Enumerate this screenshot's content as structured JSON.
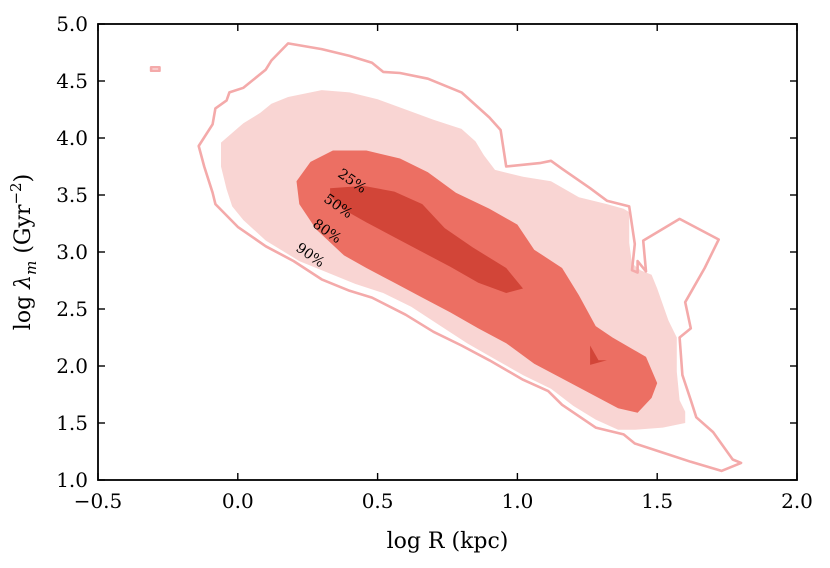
{
  "chart_data": {
    "type": "contour",
    "xlabel": "log R (kpc)",
    "ylabel_parts": {
      "pre": "log ",
      "lambda": "λ",
      "sub": "m",
      "mid": " (Gyr",
      "sup": "−2",
      "post": ")"
    },
    "xlim": [
      -0.5,
      2.0
    ],
    "ylim": [
      1.0,
      5.0
    ],
    "xticks": [
      {
        "value": -0.5,
        "label": "−0.5"
      },
      {
        "value": 0.0,
        "label": "0.0"
      },
      {
        "value": 0.5,
        "label": "0.5"
      },
      {
        "value": 1.0,
        "label": "1.0"
      },
      {
        "value": 1.5,
        "label": "1.5"
      },
      {
        "value": 2.0,
        "label": "2.0"
      }
    ],
    "yticks": [
      {
        "value": 1.0,
        "label": "1.0"
      },
      {
        "value": 1.5,
        "label": "1.5"
      },
      {
        "value": 2.0,
        "label": "2.0"
      },
      {
        "value": 2.5,
        "label": "2.5"
      },
      {
        "value": 3.0,
        "label": "3.0"
      },
      {
        "value": 3.5,
        "label": "3.5"
      },
      {
        "value": 4.0,
        "label": "4.0"
      },
      {
        "value": 4.5,
        "label": "4.5"
      },
      {
        "value": 5.0,
        "label": "5.0"
      }
    ],
    "grid": false,
    "levels": [
      {
        "name": "90%",
        "label": "90%",
        "style": "line",
        "color": "#f4aaaa",
        "label_pos": [
          0.25,
          2.94
        ],
        "polygons": [
          [
            [
              0.18,
              4.83
            ],
            [
              0.3,
              4.78
            ],
            [
              0.4,
              4.72
            ],
            [
              0.48,
              4.66
            ],
            [
              0.52,
              4.58
            ],
            [
              0.58,
              4.57
            ],
            [
              0.68,
              4.52
            ],
            [
              0.8,
              4.4
            ],
            [
              0.9,
              4.18
            ],
            [
              0.94,
              4.07
            ],
            [
              0.96,
              3.75
            ],
            [
              1.08,
              3.78
            ],
            [
              1.12,
              3.8
            ],
            [
              1.16,
              3.73
            ],
            [
              1.26,
              3.56
            ],
            [
              1.32,
              3.45
            ],
            [
              1.4,
              3.4
            ],
            [
              1.42,
              3.07
            ],
            [
              1.41,
              2.84
            ],
            [
              1.43,
              2.82
            ],
            [
              1.43,
              2.92
            ],
            [
              1.46,
              2.83
            ],
            [
              1.45,
              3.1
            ],
            [
              1.58,
              3.29
            ],
            [
              1.72,
              3.11
            ],
            [
              1.67,
              2.86
            ],
            [
              1.6,
              2.56
            ],
            [
              1.62,
              2.33
            ],
            [
              1.58,
              2.25
            ],
            [
              1.59,
              1.92
            ],
            [
              1.62,
              1.7
            ],
            [
              1.64,
              1.55
            ],
            [
              1.7,
              1.42
            ],
            [
              1.77,
              1.18
            ],
            [
              1.8,
              1.15
            ],
            [
              1.73,
              1.08
            ],
            [
              1.62,
              1.16
            ],
            [
              1.52,
              1.24
            ],
            [
              1.42,
              1.32
            ],
            [
              1.38,
              1.4
            ],
            [
              1.28,
              1.46
            ],
            [
              1.16,
              1.66
            ],
            [
              1.11,
              1.78
            ],
            [
              1.02,
              1.88
            ],
            [
              0.9,
              2.05
            ],
            [
              0.8,
              2.18
            ],
            [
              0.7,
              2.3
            ],
            [
              0.6,
              2.45
            ],
            [
              0.48,
              2.6
            ],
            [
              0.4,
              2.66
            ],
            [
              0.3,
              2.76
            ],
            [
              0.2,
              2.92
            ],
            [
              0.1,
              3.05
            ],
            [
              0.0,
              3.22
            ],
            [
              -0.08,
              3.42
            ],
            [
              -0.09,
              3.52
            ],
            [
              -0.12,
              3.75
            ],
            [
              -0.14,
              3.93
            ],
            [
              -0.09,
              4.12
            ],
            [
              -0.08,
              4.26
            ],
            [
              -0.04,
              4.33
            ],
            [
              -0.03,
              4.4
            ],
            [
              0.02,
              4.44
            ],
            [
              0.1,
              4.6
            ],
            [
              0.12,
              4.68
            ]
          ],
          [
            [
              -0.31,
              4.62
            ],
            [
              -0.28,
              4.62
            ],
            [
              -0.28,
              4.59
            ],
            [
              -0.31,
              4.59
            ]
          ]
        ]
      },
      {
        "name": "80%",
        "label": "80%",
        "style": "fill",
        "color": "#f9d5d3",
        "label_pos": [
          0.31,
          3.15
        ],
        "polygons": [
          [
            [
              0.3,
              4.42
            ],
            [
              0.4,
              4.4
            ],
            [
              0.5,
              4.34
            ],
            [
              0.6,
              4.25
            ],
            [
              0.7,
              4.16
            ],
            [
              0.8,
              4.08
            ],
            [
              0.85,
              3.97
            ],
            [
              0.88,
              3.85
            ],
            [
              0.92,
              3.72
            ],
            [
              1.02,
              3.66
            ],
            [
              1.12,
              3.62
            ],
            [
              1.22,
              3.48
            ],
            [
              1.32,
              3.42
            ],
            [
              1.38,
              3.38
            ],
            [
              1.4,
              3.35
            ],
            [
              1.4,
              3.08
            ],
            [
              1.41,
              2.9
            ],
            [
              1.44,
              2.84
            ],
            [
              1.48,
              2.8
            ],
            [
              1.5,
              2.68
            ],
            [
              1.54,
              2.4
            ],
            [
              1.57,
              2.25
            ],
            [
              1.57,
              1.95
            ],
            [
              1.58,
              1.7
            ],
            [
              1.6,
              1.6
            ],
            [
              1.6,
              1.5
            ],
            [
              1.52,
              1.46
            ],
            [
              1.42,
              1.44
            ],
            [
              1.36,
              1.44
            ],
            [
              1.28,
              1.53
            ],
            [
              1.2,
              1.65
            ],
            [
              1.12,
              1.8
            ],
            [
              1.02,
              1.92
            ],
            [
              0.92,
              2.06
            ],
            [
              0.82,
              2.2
            ],
            [
              0.72,
              2.36
            ],
            [
              0.62,
              2.52
            ],
            [
              0.52,
              2.64
            ],
            [
              0.42,
              2.72
            ],
            [
              0.32,
              2.82
            ],
            [
              0.22,
              2.92
            ],
            [
              0.1,
              3.1
            ],
            [
              0.02,
              3.28
            ],
            [
              -0.02,
              3.4
            ],
            [
              -0.04,
              3.55
            ],
            [
              -0.06,
              3.75
            ],
            [
              -0.06,
              3.96
            ],
            [
              0.02,
              4.13
            ],
            [
              0.08,
              4.22
            ],
            [
              0.12,
              4.3
            ],
            [
              0.18,
              4.36
            ]
          ]
        ]
      },
      {
        "name": "50%",
        "label": "50%",
        "style": "fill",
        "color": "#ec6f63",
        "label_pos": [
          0.35,
          3.37
        ],
        "polygons": [
          [
            [
              0.34,
              3.89
            ],
            [
              0.46,
              3.89
            ],
            [
              0.58,
              3.82
            ],
            [
              0.68,
              3.7
            ],
            [
              0.78,
              3.52
            ],
            [
              0.9,
              3.38
            ],
            [
              1.0,
              3.24
            ],
            [
              1.06,
              3.02
            ],
            [
              1.16,
              2.86
            ],
            [
              1.22,
              2.62
            ],
            [
              1.28,
              2.35
            ],
            [
              1.34,
              2.25
            ],
            [
              1.46,
              2.08
            ],
            [
              1.5,
              1.85
            ],
            [
              1.48,
              1.72
            ],
            [
              1.43,
              1.59
            ],
            [
              1.36,
              1.63
            ],
            [
              1.26,
              1.76
            ],
            [
              1.16,
              1.89
            ],
            [
              1.06,
              2.02
            ],
            [
              0.96,
              2.2
            ],
            [
              0.86,
              2.33
            ],
            [
              0.76,
              2.47
            ],
            [
              0.66,
              2.6
            ],
            [
              0.56,
              2.73
            ],
            [
              0.46,
              2.86
            ],
            [
              0.38,
              2.97
            ],
            [
              0.28,
              3.2
            ],
            [
              0.22,
              3.42
            ],
            [
              0.21,
              3.62
            ],
            [
              0.26,
              3.79
            ]
          ]
        ]
      },
      {
        "name": "25%",
        "label": "25%",
        "style": "fill",
        "color": "#d24538",
        "label_pos": [
          0.4,
          3.59
        ],
        "polygons": [
          [
            [
              0.33,
              3.56
            ],
            [
              0.45,
              3.58
            ],
            [
              0.56,
              3.53
            ],
            [
              0.66,
              3.42
            ],
            [
              0.74,
              3.21
            ],
            [
              0.84,
              3.04
            ],
            [
              0.96,
              2.86
            ],
            [
              1.02,
              2.68
            ],
            [
              0.96,
              2.64
            ],
            [
              0.86,
              2.73
            ],
            [
              0.76,
              2.87
            ],
            [
              0.66,
              3.0
            ],
            [
              0.56,
              3.13
            ],
            [
              0.46,
              3.26
            ],
            [
              0.38,
              3.37
            ],
            [
              0.33,
              3.49
            ]
          ],
          [
            [
              1.26,
              2.18
            ],
            [
              1.29,
              2.05
            ],
            [
              1.32,
              2.05
            ],
            [
              1.26,
              2.01
            ]
          ]
        ]
      }
    ]
  }
}
